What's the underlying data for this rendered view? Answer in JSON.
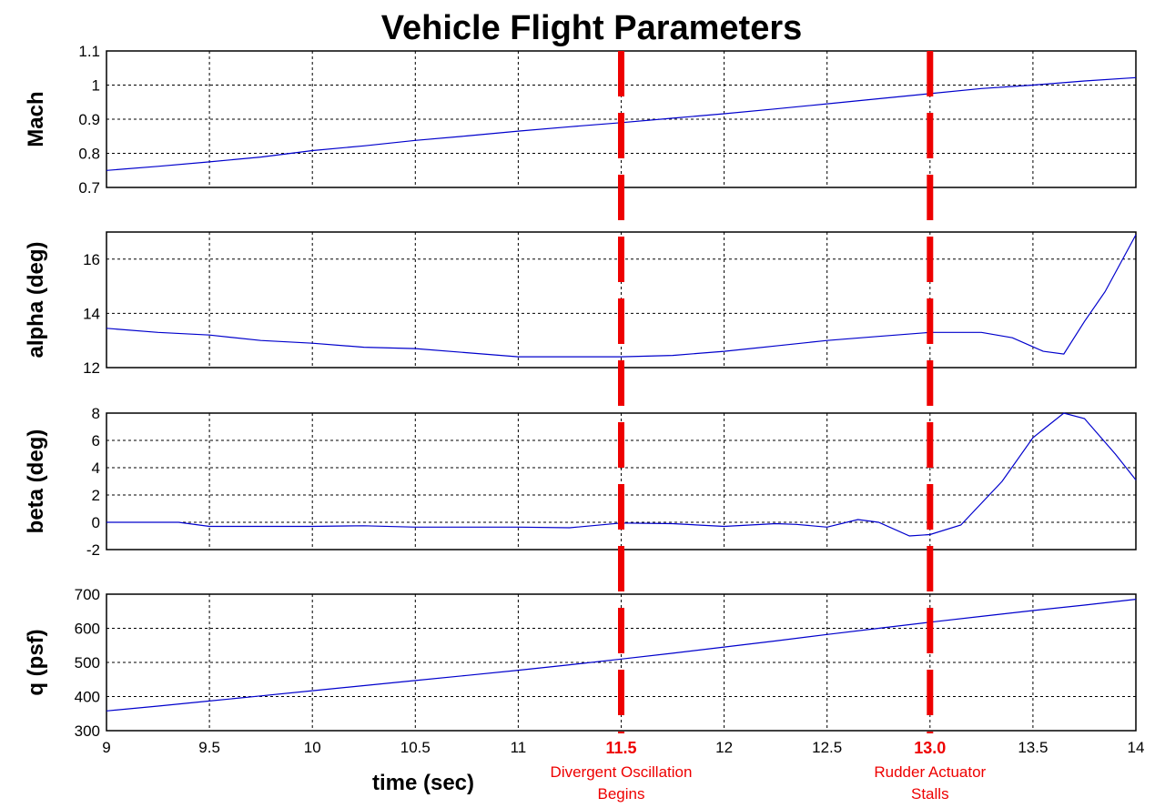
{
  "chart_data": {
    "type": "line",
    "title": "Vehicle Flight Parameters",
    "xlabel": "time  (sec)",
    "xlim": [
      9,
      14
    ],
    "xticks": [
      "9",
      "9.5",
      "10",
      "10.5",
      "11",
      "11.5",
      "12",
      "12.5",
      "13",
      "13.5",
      "14"
    ],
    "grid": true,
    "line_color": "#0000cc",
    "marker_color": "#ee0000",
    "markers": [
      {
        "x": 11.5,
        "tick_label": "11.5",
        "note": [
          "Divergent Oscillation",
          "Begins"
        ]
      },
      {
        "x": 13.0,
        "tick_label": "13.0",
        "note": [
          "Rudder Actuator",
          "Stalls"
        ]
      }
    ],
    "panels": [
      {
        "ylabel": "Mach",
        "ylim": [
          0.7,
          1.1
        ],
        "yticks": [
          "0.7",
          "0.8",
          "0.9",
          "1",
          "1.1"
        ],
        "tick_values": [
          0.7,
          0.8,
          0.9,
          1.0,
          1.1
        ],
        "series": {
          "x": [
            9,
            9.25,
            9.5,
            9.75,
            10,
            10.25,
            10.5,
            10.75,
            11,
            11.25,
            11.5,
            11.75,
            12,
            12.25,
            12.5,
            12.75,
            13,
            13.25,
            13.5,
            13.75,
            14
          ],
          "y": [
            0.75,
            0.762,
            0.775,
            0.789,
            0.808,
            0.822,
            0.838,
            0.851,
            0.865,
            0.878,
            0.89,
            0.903,
            0.916,
            0.93,
            0.945,
            0.96,
            0.975,
            0.99,
            1.0,
            1.012,
            1.022
          ]
        }
      },
      {
        "ylabel": "alpha  (deg)",
        "ylim": [
          12,
          17
        ],
        "yticks": [
          "12",
          "14",
          "16"
        ],
        "tick_values": [
          12,
          14,
          16
        ],
        "series": {
          "x": [
            9,
            9.25,
            9.5,
            9.75,
            10,
            10.25,
            10.5,
            10.75,
            11,
            11.25,
            11.5,
            11.75,
            12,
            12.25,
            12.5,
            12.75,
            13,
            13.25,
            13.4,
            13.55,
            13.65,
            13.75,
            13.85,
            14
          ],
          "y": [
            13.45,
            13.3,
            13.2,
            13.0,
            12.9,
            12.75,
            12.7,
            12.55,
            12.4,
            12.4,
            12.4,
            12.45,
            12.6,
            12.8,
            13.0,
            13.15,
            13.3,
            13.3,
            13.1,
            12.6,
            12.5,
            13.7,
            14.8,
            16.9
          ]
        }
      },
      {
        "ylabel": "beta  (deg)",
        "ylim": [
          -2,
          8
        ],
        "yticks": [
          "-2",
          "0",
          "2",
          "4",
          "6",
          "8"
        ],
        "tick_values": [
          -2,
          0,
          2,
          4,
          6,
          8
        ],
        "series": {
          "x": [
            9,
            9.35,
            9.5,
            9.75,
            10,
            10.25,
            10.5,
            10.75,
            11,
            11.25,
            11.5,
            11.75,
            12,
            12.25,
            12.35,
            12.5,
            12.65,
            12.75,
            12.9,
            13.0,
            13.15,
            13.35,
            13.5,
            13.65,
            13.75,
            13.9,
            14
          ],
          "y": [
            0,
            0,
            -0.3,
            -0.3,
            -0.3,
            -0.25,
            -0.35,
            -0.35,
            -0.35,
            -0.4,
            -0.05,
            -0.1,
            -0.3,
            -0.1,
            -0.15,
            -0.35,
            0.2,
            0.0,
            -1.0,
            -0.9,
            -0.2,
            3.0,
            6.2,
            8.0,
            7.6,
            5.0,
            3.1
          ]
        }
      },
      {
        "ylabel": "q  (psf)",
        "ylim": [
          300,
          700
        ],
        "yticks": [
          "300",
          "400",
          "500",
          "600",
          "700"
        ],
        "tick_values": [
          300,
          400,
          500,
          600,
          700
        ],
        "series": {
          "x": [
            9,
            9.25,
            9.5,
            9.75,
            10,
            10.25,
            10.5,
            10.75,
            11,
            11.25,
            11.5,
            11.75,
            12,
            12.25,
            12.5,
            12.75,
            13,
            13.25,
            13.5,
            13.75,
            14
          ],
          "y": [
            358,
            372,
            387,
            402,
            417,
            432,
            447,
            462,
            477,
            493,
            510,
            527,
            545,
            563,
            582,
            600,
            618,
            635,
            652,
            668,
            685
          ]
        }
      }
    ]
  }
}
